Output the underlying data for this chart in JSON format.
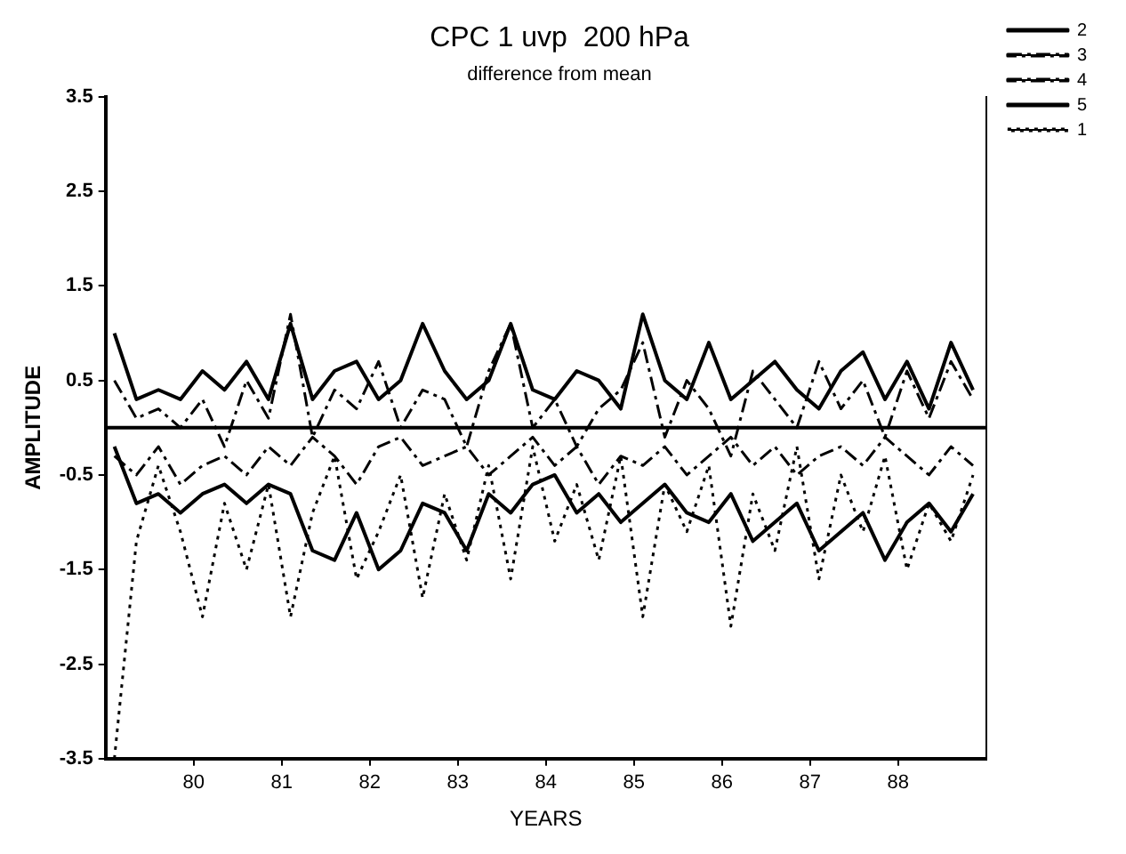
{
  "chart_data": {
    "type": "line",
    "title": "CPC 1 uvp  200 hPa",
    "subtitle": "difference from mean",
    "xlabel": "YEARS",
    "ylabel": "AMPLITUDE",
    "x": [
      79.1,
      79.35,
      79.6,
      79.85,
      80.1,
      80.35,
      80.6,
      80.85,
      81.1,
      81.35,
      81.6,
      81.85,
      82.1,
      82.35,
      82.6,
      82.85,
      83.1,
      83.35,
      83.6,
      83.85,
      84.1,
      84.35,
      84.6,
      84.85,
      85.1,
      85.35,
      85.6,
      85.85,
      86.1,
      86.35,
      86.6,
      86.85,
      87.1,
      87.35,
      87.6,
      87.85,
      88.1,
      88.35,
      88.6,
      88.85
    ],
    "series": [
      {
        "name": "2",
        "color": "#000000",
        "line_style": "solid",
        "values": [
          1.0,
          0.3,
          0.4,
          0.3,
          0.6,
          0.4,
          0.7,
          0.3,
          1.1,
          0.3,
          0.6,
          0.7,
          0.3,
          0.5,
          1.1,
          0.6,
          0.3,
          0.5,
          1.1,
          0.4,
          0.3,
          0.6,
          0.5,
          0.2,
          1.2,
          0.5,
          0.3,
          0.9,
          0.3,
          0.5,
          0.7,
          0.4,
          0.2,
          0.6,
          0.8,
          0.3,
          0.7,
          0.2,
          0.9,
          0.4
        ]
      },
      {
        "name": "3",
        "color": "#000000",
        "line_style": "dashed",
        "values": [
          0.5,
          0.1,
          0.2,
          0.0,
          0.3,
          -0.2,
          0.5,
          0.1,
          1.2,
          -0.1,
          0.4,
          0.2,
          0.7,
          0.0,
          0.4,
          0.3,
          -0.2,
          0.6,
          1.1,
          0.0,
          0.3,
          -0.2,
          0.2,
          0.4,
          0.9,
          -0.1,
          0.5,
          0.2,
          -0.3,
          0.6,
          0.3,
          0.0,
          0.7,
          0.2,
          0.5,
          -0.1,
          0.6,
          0.1,
          0.7,
          0.3
        ]
      },
      {
        "name": "4",
        "color": "#000000",
        "line_style": "dashed",
        "values": [
          -0.3,
          -0.5,
          -0.2,
          -0.6,
          -0.4,
          -0.3,
          -0.5,
          -0.2,
          -0.4,
          -0.1,
          -0.3,
          -0.6,
          -0.2,
          -0.1,
          -0.4,
          -0.3,
          -0.2,
          -0.5,
          -0.3,
          -0.1,
          -0.4,
          -0.2,
          -0.6,
          -0.3,
          -0.4,
          -0.2,
          -0.5,
          -0.3,
          -0.1,
          -0.4,
          -0.2,
          -0.5,
          -0.3,
          -0.2,
          -0.4,
          -0.1,
          -0.3,
          -0.5,
          -0.2,
          -0.4
        ]
      },
      {
        "name": "5",
        "color": "#000000",
        "line_style": "solid",
        "values": [
          -0.2,
          -0.8,
          -0.7,
          -0.9,
          -0.7,
          -0.6,
          -0.8,
          -0.6,
          -0.7,
          -1.3,
          -1.4,
          -0.9,
          -1.5,
          -1.3,
          -0.8,
          -0.9,
          -1.3,
          -0.7,
          -0.9,
          -0.6,
          -0.5,
          -0.9,
          -0.7,
          -1.0,
          -0.8,
          -0.6,
          -0.9,
          -1.0,
          -0.7,
          -1.2,
          -1.0,
          -0.8,
          -1.3,
          -1.1,
          -0.9,
          -1.4,
          -1.0,
          -0.8,
          -1.1,
          -0.7
        ]
      },
      {
        "name": "1",
        "color": "#000000",
        "line_style": "dotted",
        "values": [
          -3.5,
          -1.2,
          -0.4,
          -1.1,
          -2.0,
          -0.8,
          -1.5,
          -0.6,
          -2.0,
          -0.9,
          -0.3,
          -1.6,
          -1.1,
          -0.5,
          -1.8,
          -0.7,
          -1.4,
          -0.4,
          -1.6,
          -0.2,
          -1.2,
          -0.6,
          -1.4,
          -0.3,
          -2.0,
          -0.6,
          -1.1,
          -0.4,
          -2.1,
          -0.7,
          -1.3,
          -0.2,
          -1.6,
          -0.5,
          -1.1,
          -0.3,
          -1.5,
          -0.8,
          -1.2,
          -0.5
        ]
      }
    ],
    "xlim": [
      79,
      89
    ],
    "xticks": [
      80,
      81,
      82,
      83,
      84,
      85,
      86,
      87,
      88
    ],
    "ylim": [
      -3.5,
      3.5
    ],
    "yticks": [
      -3.5,
      -2.5,
      -1.5,
      -0.5,
      0.5,
      1.5,
      2.5,
      3.5
    ],
    "ref_lines": [
      {
        "axis": "y",
        "value": 0,
        "color": "#000000",
        "line_style": "solid"
      }
    ],
    "grid": false,
    "legend": "top right",
    "marker": "none"
  }
}
